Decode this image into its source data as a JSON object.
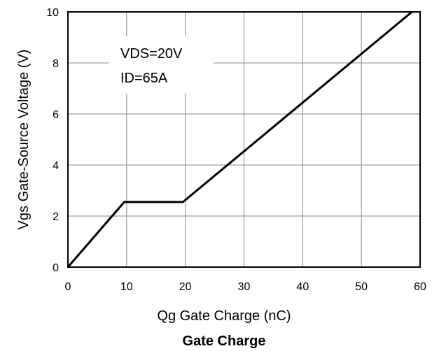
{
  "chart_data": {
    "type": "line",
    "title": "Gate Charge",
    "xlabel": "Qg Gate Charge (nC)",
    "ylabel": "Vgs Gate-Source Voltage (V)",
    "xlim": [
      0,
      60
    ],
    "ylim": [
      0,
      10
    ],
    "xticks": [
      "0",
      "10",
      "20",
      "30",
      "40",
      "50",
      "60"
    ],
    "yticks": [
      "0",
      "2",
      "4",
      "6",
      "8",
      "10"
    ],
    "grid": true,
    "annotations": [
      "VDS=20V",
      "ID=65A"
    ],
    "series": [
      {
        "x": [
          0,
          9.6,
          19.6,
          58.6
        ],
        "y": [
          0,
          2.55,
          2.55,
          10
        ]
      }
    ],
    "colors": {
      "line": "#000000",
      "grid": "#888888",
      "frame": "#000000"
    }
  }
}
